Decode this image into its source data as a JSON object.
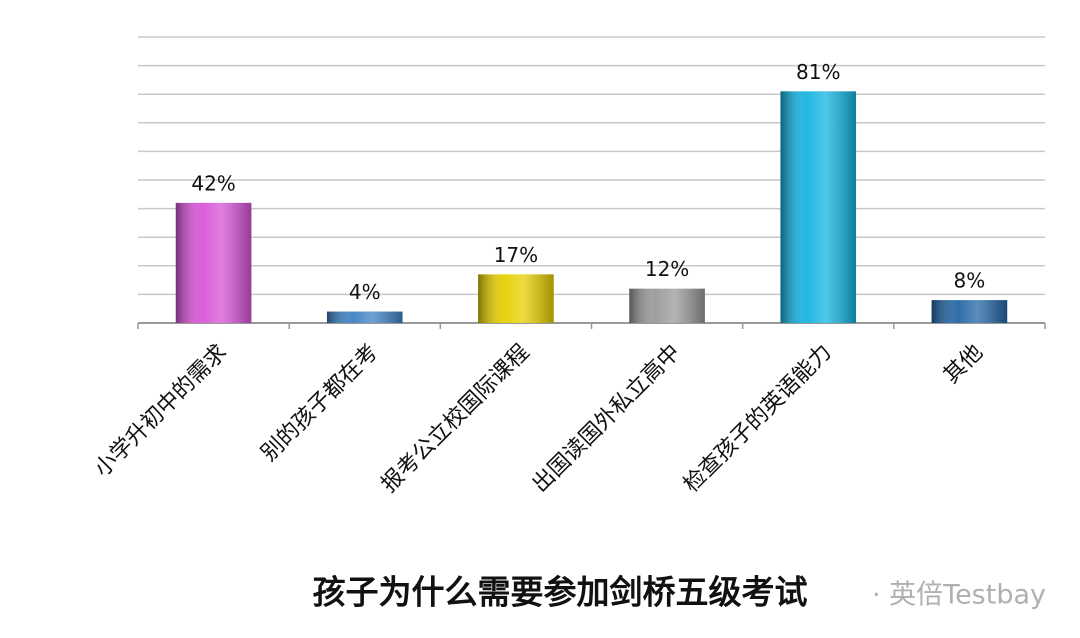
{
  "chart_data": {
    "type": "bar",
    "title": "孩子为什么需要参加剑桥五级考试",
    "categories": [
      "小学升初中的需求",
      "别的孩子都在考",
      "报考公立校国际课程",
      "出国读国外私立高中",
      "检查孩子的英语能力",
      "其他"
    ],
    "values": [
      42,
      4,
      17,
      12,
      81,
      8
    ],
    "value_labels": [
      "42%",
      "4%",
      "17%",
      "12%",
      "81%",
      "8%"
    ],
    "colors": [
      "#d855d8",
      "#3f82c4",
      "#e6cf00",
      "#9a9a9a",
      "#14b4e0",
      "#2466a6"
    ],
    "ylim": [
      0,
      100
    ],
    "yticks": [
      0,
      10,
      20,
      30,
      40,
      50,
      60,
      70,
      80,
      90,
      100
    ],
    "grid": true,
    "watermark": "· 英倍Testbay"
  }
}
